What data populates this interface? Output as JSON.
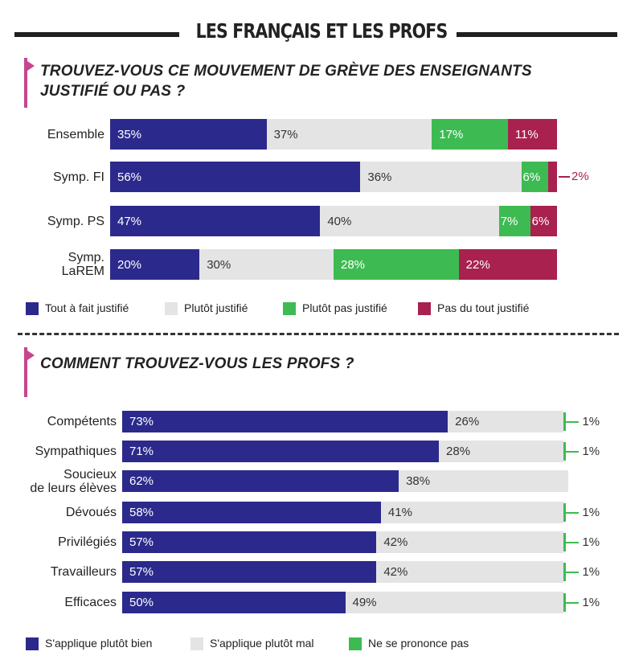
{
  "title": "LES FRANÇAIS ET LES PROFS",
  "colors": {
    "blue": "#2b2a8c",
    "grey": "#e4e4e4",
    "green": "#3dbb52",
    "magenta": "#a8214f",
    "accent": "#c6458f"
  },
  "chart_data": [
    {
      "type": "bar",
      "orientation": "horizontal",
      "stacked": true,
      "title": "TROUVEZ-VOUS CE MOUVEMENT DE GRÈVE DES ENSEIGNANTS JUSTIFIÉ OU PAS ?",
      "title_lines": [
        "TROUVEZ-VOUS CE MOUVEMENT DE GRÈVE DES ENSEIGNANTS",
        "JUSTIFIÉ OU PAS ?"
      ],
      "categories": [
        "Ensemble",
        "Symp. FI",
        "Symp. PS",
        "Symp. LaREM"
      ],
      "category_lines": [
        [
          "Ensemble"
        ],
        [
          "Symp. FI"
        ],
        [
          "Symp. PS"
        ],
        [
          "Symp.",
          "LaREM"
        ]
      ],
      "series": [
        {
          "name": "Tout à fait justifié",
          "color": "#2b2a8c",
          "values": [
            35,
            56,
            47,
            20
          ],
          "labels": [
            "35%",
            "56%",
            "47%",
            "20%"
          ]
        },
        {
          "name": "Plutôt justifié",
          "color": "#e4e4e4",
          "values": [
            37,
            36,
            40,
            30
          ],
          "labels": [
            "37%",
            "36%",
            "40%",
            "30%"
          ]
        },
        {
          "name": "Plutôt pas justifié",
          "color": "#3dbb52",
          "values": [
            17,
            6,
            7,
            28
          ],
          "labels": [
            "17%",
            "6%",
            "7%",
            "28%"
          ]
        },
        {
          "name": "Pas du tout justifié",
          "color": "#a8214f",
          "values": [
            11,
            2,
            6,
            22
          ],
          "labels": [
            "11%",
            "",
            "6%",
            "22%"
          ]
        }
      ],
      "annotations": [
        {
          "category": "Symp. FI",
          "series": "Pas du tout justifié",
          "text": "2%"
        }
      ],
      "xlim": [
        0,
        100
      ]
    },
    {
      "type": "bar",
      "orientation": "horizontal",
      "stacked": true,
      "title": "COMMENT TROUVEZ-VOUS LES PROFS ?",
      "title_lines": [
        "COMMENT TROUVEZ-VOUS LES PROFS ?"
      ],
      "categories": [
        "Compétents",
        "Sympathiques",
        "Soucieux de leurs élèves",
        "Dévoués",
        "Privilégiés",
        "Travailleurs",
        "Efficaces"
      ],
      "category_lines": [
        [
          "Compétents"
        ],
        [
          "Sympathiques"
        ],
        [
          "Soucieux",
          "de leurs élèves"
        ],
        [
          "Dévoués"
        ],
        [
          "Privilégiés"
        ],
        [
          "Travailleurs"
        ],
        [
          "Efficaces"
        ]
      ],
      "series": [
        {
          "name": "S'applique plutôt bien",
          "color": "#2b2a8c",
          "values": [
            73,
            71,
            62,
            58,
            57,
            57,
            50
          ],
          "labels": [
            "73%",
            "71%",
            "62%",
            "58%",
            "57%",
            "57%",
            "50%"
          ]
        },
        {
          "name": "S'applique plutôt mal",
          "color": "#e4e4e4",
          "values": [
            26,
            28,
            38,
            41,
            42,
            42,
            49
          ],
          "labels": [
            "26%",
            "28%",
            "38%",
            "41%",
            "42%",
            "42%",
            "49%"
          ]
        },
        {
          "name": "Ne se prononce pas",
          "color": "#3dbb52",
          "values": [
            1,
            1,
            0,
            1,
            1,
            1,
            1
          ],
          "labels": [
            "1%",
            "1%",
            "",
            "1%",
            "1%",
            "1%",
            "1%"
          ]
        }
      ],
      "xlim": [
        0,
        100
      ]
    }
  ]
}
